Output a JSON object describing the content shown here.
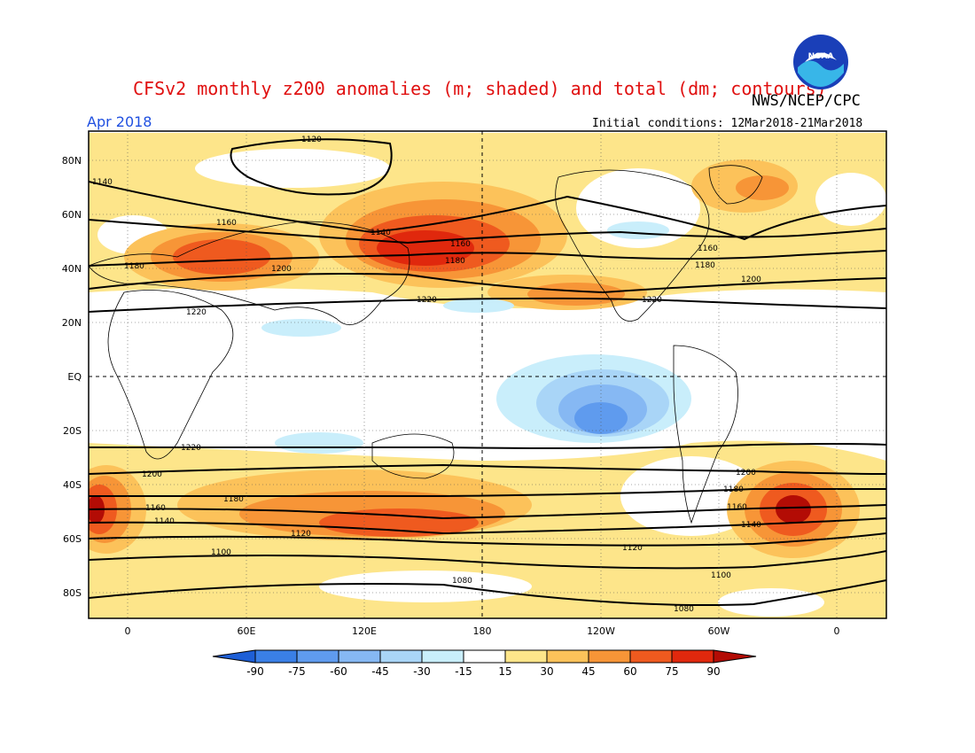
{
  "header": {
    "title": "CFSv2 monthly z200 anomalies (m; shaded) and total (dm; contours)",
    "month": "Apr 2018",
    "agency": "NWS/NCEP/CPC",
    "initial_conditions": "Initial conditions: 12Mar2018-21Mar2018",
    "logo_text": "NOAA"
  },
  "axes": {
    "lat_labels": [
      "80N",
      "60N",
      "40N",
      "20N",
      "EQ",
      "20S",
      "40S",
      "60S",
      "80S"
    ],
    "lon_labels": [
      "0",
      "60E",
      "120E",
      "180",
      "120W",
      "60W",
      "0"
    ]
  },
  "colorbar": {
    "labels": [
      "-90",
      "-75",
      "-60",
      "-45",
      "-30",
      "-15",
      "15",
      "30",
      "45",
      "60",
      "75",
      "90"
    ],
    "colors": [
      "#1e5fd6",
      "#3a7fe6",
      "#5f9bee",
      "#86b8f3",
      "#a9d5f7",
      "#c9eefb",
      "#ffffff",
      "#fde58a",
      "#fcc25a",
      "#f79537",
      "#ef5a1f",
      "#e0280d",
      "#b30c05"
    ]
  },
  "contour_labels": [
    "1120",
    "1140",
    "1160",
    "1180",
    "1200",
    "1220",
    "1160",
    "1180",
    "1140",
    "1160",
    "1180",
    "1200",
    "1220",
    "1220",
    "1220",
    "1200",
    "1180",
    "1160",
    "1140",
    "1120",
    "1100",
    "1080",
    "1200",
    "1180",
    "1160",
    "1140",
    "1120",
    "1100",
    "1080"
  ]
}
